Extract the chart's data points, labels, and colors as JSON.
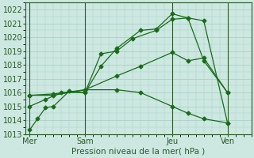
{
  "background_color": "#cce8e0",
  "grid_color": "#aacfc8",
  "line_color": "#1a6b1a",
  "dark_line_color": "#2a5a2a",
  "xlabel": "Pression niveau de la mer( hPa )",
  "ylim": [
    1013,
    1022.5
  ],
  "yticks": [
    1013,
    1014,
    1015,
    1016,
    1017,
    1018,
    1019,
    1020,
    1021,
    1022
  ],
  "xtick_labels": [
    "Mer",
    "Sam",
    "Jeu",
    "Ven"
  ],
  "xtick_positions": [
    0,
    7,
    18,
    25
  ],
  "xlim": [
    -0.5,
    28
  ],
  "vline_positions": [
    0,
    7,
    18,
    25
  ],
  "series": [
    {
      "x": [
        0,
        1,
        2,
        3,
        5,
        7,
        9,
        11,
        14,
        16,
        18,
        20,
        22,
        25
      ],
      "y": [
        1013.3,
        1014.1,
        1014.9,
        1015.0,
        1016.1,
        1016.0,
        1017.9,
        1019.2,
        1020.5,
        1020.6,
        1021.7,
        1021.4,
        1021.2,
        1013.8
      ]
    },
    {
      "x": [
        0,
        2,
        4,
        7,
        9,
        11,
        13,
        16,
        18,
        20,
        22,
        25
      ],
      "y": [
        1015.0,
        1015.5,
        1016.0,
        1016.0,
        1018.8,
        1019.0,
        1019.9,
        1020.5,
        1021.3,
        1021.4,
        1018.3,
        1016.0
      ]
    },
    {
      "x": [
        0,
        3,
        7,
        11,
        14,
        18,
        20,
        22,
        25
      ],
      "y": [
        1015.8,
        1015.8,
        1016.2,
        1017.2,
        1017.9,
        1018.9,
        1018.3,
        1018.5,
        1016.0
      ]
    },
    {
      "x": [
        0,
        3,
        7,
        11,
        14,
        18,
        20,
        22,
        25
      ],
      "y": [
        1015.8,
        1015.9,
        1016.2,
        1016.2,
        1016.0,
        1015.0,
        1014.5,
        1014.1,
        1013.8
      ]
    }
  ]
}
